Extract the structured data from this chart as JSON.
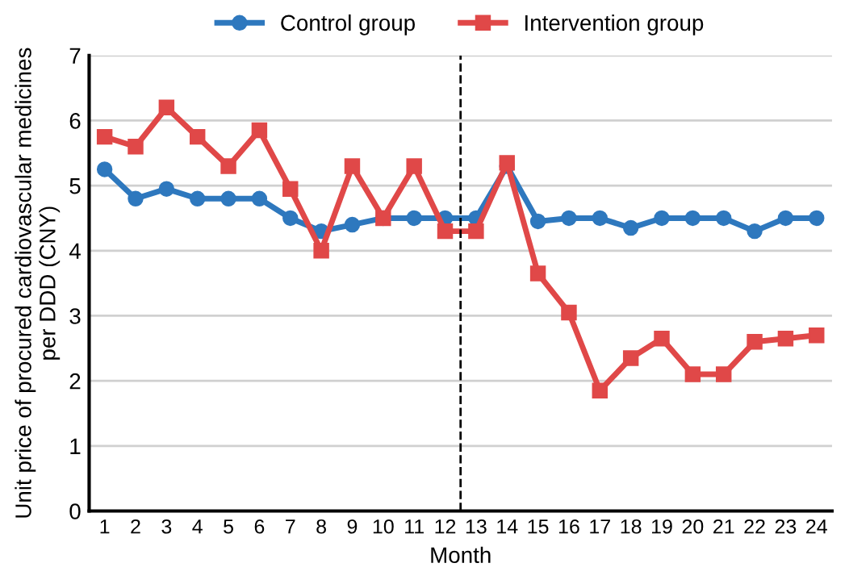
{
  "chart_data": {
    "type": "line",
    "xlabel": "Month",
    "ylabel": "Unit price of procured cardiovascular medicines\nper DDD (CNY)",
    "x": [
      1,
      2,
      3,
      4,
      5,
      6,
      7,
      8,
      9,
      10,
      11,
      12,
      13,
      14,
      15,
      16,
      17,
      18,
      19,
      20,
      21,
      22,
      23,
      24
    ],
    "xlim": [
      0.5,
      24.5
    ],
    "xticks": [
      1,
      2,
      3,
      4,
      5,
      6,
      7,
      8,
      9,
      10,
      11,
      12,
      13,
      14,
      15,
      16,
      17,
      18,
      19,
      20,
      21,
      22,
      23,
      24
    ],
    "ylim": [
      0,
      7
    ],
    "yticks": [
      0,
      1,
      2,
      3,
      4,
      5,
      6,
      7
    ],
    "grid": "y",
    "legend": "top",
    "line_style": "solid",
    "series": [
      {
        "name": "Control group",
        "color": "#2e78be",
        "marker": "circle",
        "values": [
          5.25,
          4.8,
          4.95,
          4.8,
          4.8,
          4.8,
          4.5,
          4.3,
          4.4,
          4.5,
          4.5,
          4.5,
          4.5,
          5.3,
          4.45,
          4.5,
          4.5,
          4.35,
          4.5,
          4.5,
          4.5,
          4.3,
          4.5,
          4.5
        ]
      },
      {
        "name": "Intervention group",
        "color": "#e04848",
        "marker": "square",
        "values": [
          5.75,
          5.6,
          6.2,
          5.75,
          5.3,
          5.85,
          4.95,
          4.0,
          5.3,
          4.5,
          5.3,
          4.3,
          4.3,
          5.35,
          3.65,
          3.05,
          1.85,
          2.35,
          2.65,
          2.1,
          2.1,
          2.6,
          2.65,
          2.7
        ]
      }
    ],
    "ref_lines": [
      {
        "axis": "x",
        "value": 12.5,
        "color": "#000000",
        "line_style": "dashed"
      }
    ]
  }
}
